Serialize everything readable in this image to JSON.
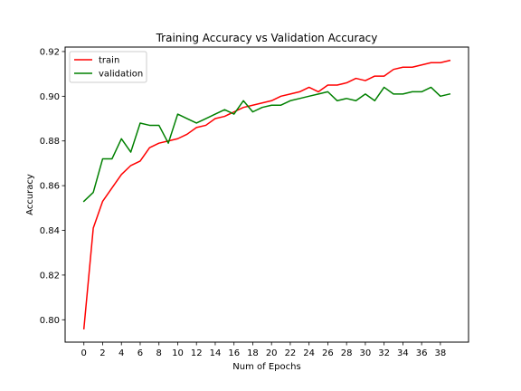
{
  "chart_data": {
    "type": "line",
    "title": "Training Accuracy vs Validation Accuracy",
    "xlabel": "Num of Epochs",
    "ylabel": "Accuracy",
    "xlim": [
      -2,
      41
    ],
    "ylim": [
      0.79,
      0.922
    ],
    "xticks": [
      0,
      2,
      4,
      6,
      8,
      10,
      12,
      14,
      16,
      18,
      20,
      22,
      24,
      26,
      28,
      30,
      32,
      34,
      36,
      38
    ],
    "yticks": [
      0.8,
      0.82,
      0.84,
      0.86,
      0.88,
      0.9,
      0.92
    ],
    "ytick_labels": [
      "0.80",
      "0.82",
      "0.84",
      "0.86",
      "0.88",
      "0.90",
      "0.92"
    ],
    "legend_position": "top-left",
    "grid": false,
    "x": [
      0,
      1,
      2,
      3,
      4,
      5,
      6,
      7,
      8,
      9,
      10,
      11,
      12,
      13,
      14,
      15,
      16,
      17,
      18,
      19,
      20,
      21,
      22,
      23,
      24,
      25,
      26,
      27,
      28,
      29,
      30,
      31,
      32,
      33,
      34,
      35,
      36,
      37,
      38,
      39
    ],
    "series": [
      {
        "name": "train",
        "color": "#ff0000",
        "values": [
          0.796,
          0.841,
          0.853,
          0.859,
          0.865,
          0.869,
          0.871,
          0.877,
          0.879,
          0.88,
          0.881,
          0.883,
          0.886,
          0.887,
          0.89,
          0.891,
          0.893,
          0.895,
          0.896,
          0.897,
          0.898,
          0.9,
          0.901,
          0.902,
          0.904,
          0.902,
          0.905,
          0.905,
          0.906,
          0.908,
          0.907,
          0.909,
          0.909,
          0.912,
          0.913,
          0.913,
          0.914,
          0.915,
          0.915,
          0.916
        ]
      },
      {
        "name": "validation",
        "color": "#008000",
        "values": [
          0.853,
          0.857,
          0.872,
          0.872,
          0.881,
          0.875,
          0.888,
          0.887,
          0.887,
          0.879,
          0.892,
          0.89,
          0.888,
          0.89,
          0.892,
          0.894,
          0.892,
          0.898,
          0.893,
          0.895,
          0.896,
          0.896,
          0.898,
          0.899,
          0.9,
          0.901,
          0.902,
          0.898,
          0.899,
          0.898,
          0.901,
          0.898,
          0.904,
          0.901,
          0.901,
          0.902,
          0.902,
          0.904,
          0.9,
          0.901
        ]
      }
    ]
  }
}
